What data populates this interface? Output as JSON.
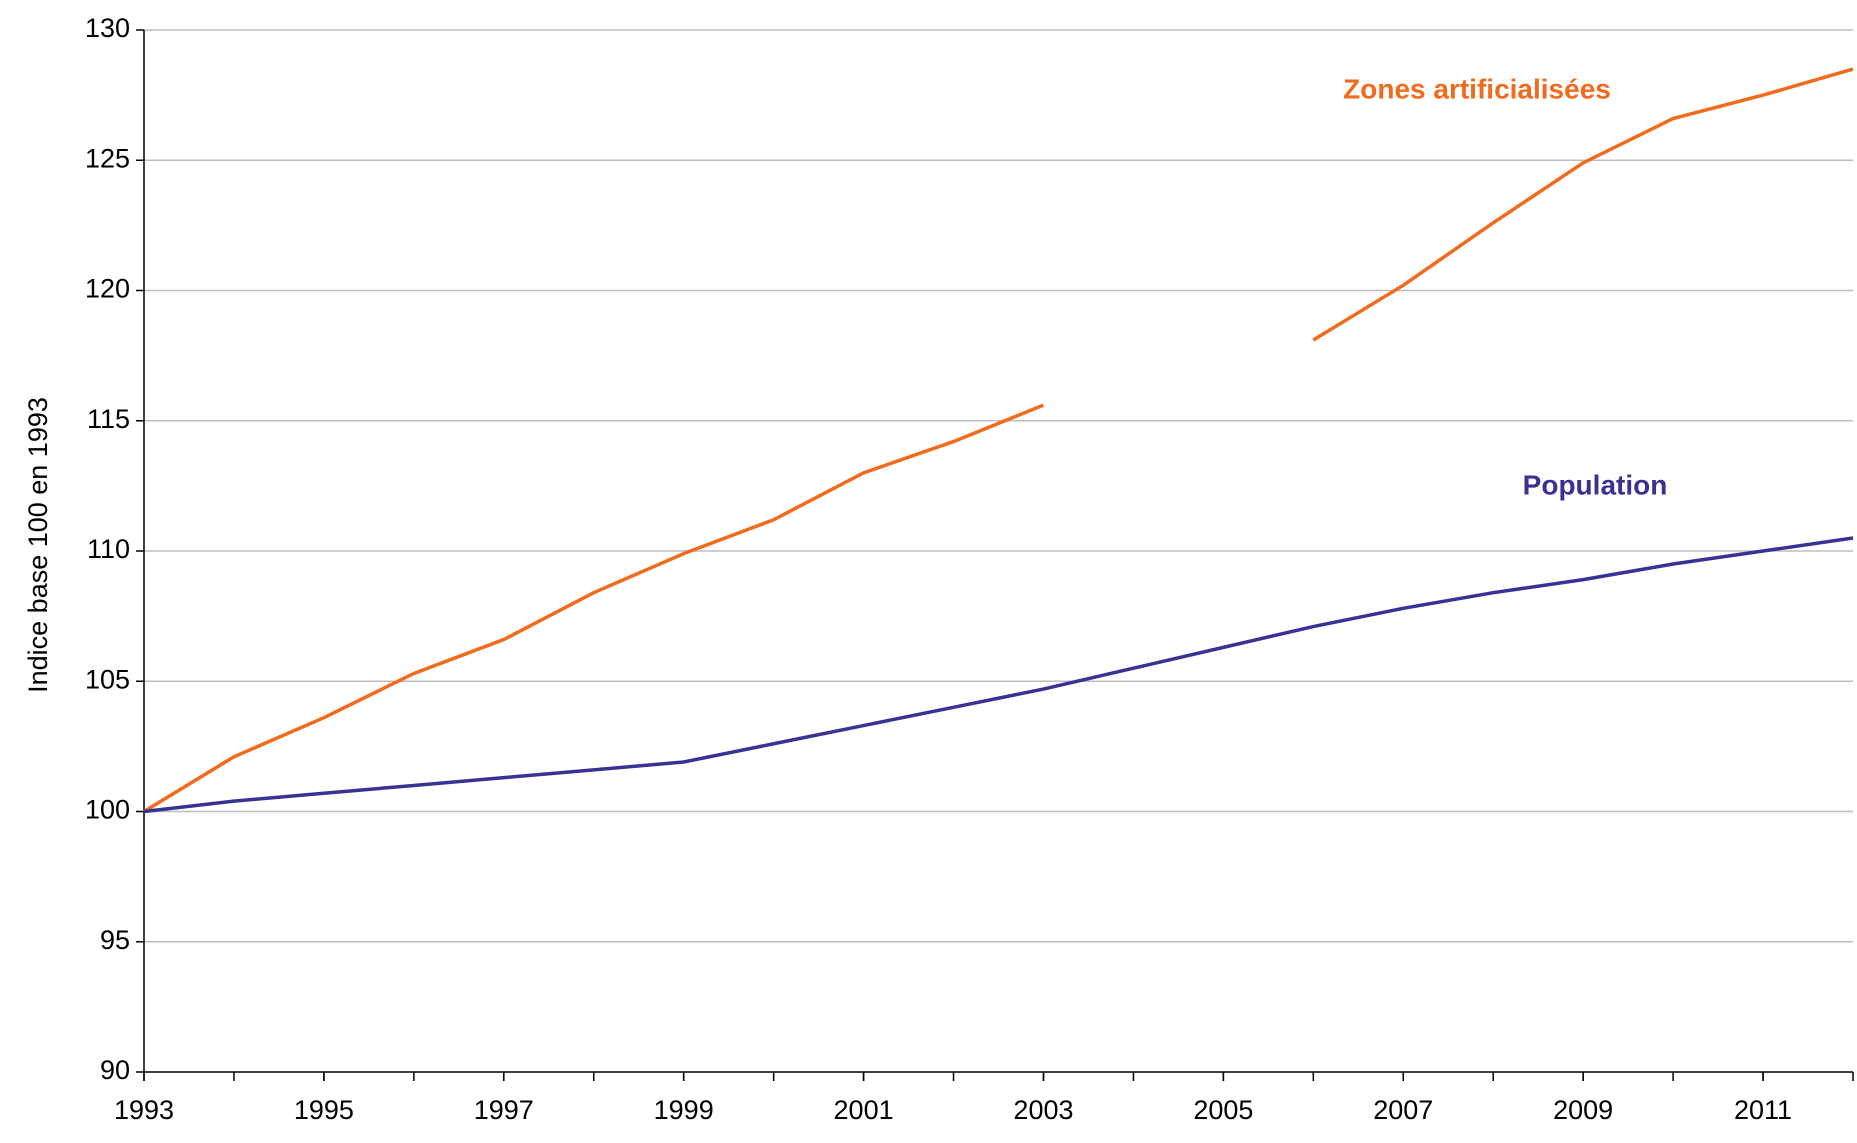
{
  "chart_data": {
    "type": "line",
    "y_label": "Indice base 100 en 1993",
    "x": [
      1993,
      1994,
      1995,
      1996,
      1997,
      1998,
      1999,
      2000,
      2001,
      2002,
      2003,
      2004,
      2005,
      2006,
      2007,
      2008,
      2009,
      2010,
      2011,
      2012
    ],
    "series": [
      {
        "name": "Zones artificialisées",
        "color": "#f26a1b",
        "values": [
          100,
          102.1,
          103.6,
          105.3,
          106.6,
          108.4,
          109.9,
          111.2,
          113.0,
          114.2,
          115.6,
          null,
          null,
          118.1,
          120.2,
          122.6,
          124.9,
          126.6,
          127.5,
          128.5
        ]
      },
      {
        "name": "Population",
        "color": "#3a3195",
        "values": [
          100,
          100.4,
          100.7,
          101.0,
          101.3,
          101.6,
          101.9,
          102.6,
          103.3,
          104.0,
          104.7,
          105.5,
          106.3,
          107.1,
          107.8,
          108.4,
          108.9,
          109.5,
          110.0,
          110.5
        ]
      }
    ],
    "xlim": [
      1993,
      2012
    ],
    "xticks": [
      1993,
      1995,
      1997,
      1999,
      2001,
      2003,
      2005,
      2007,
      2009,
      2011
    ],
    "ylim": [
      90,
      130
    ],
    "yticks": [
      90,
      95,
      100,
      105,
      110,
      115,
      120,
      125,
      130
    ],
    "grid": true
  }
}
